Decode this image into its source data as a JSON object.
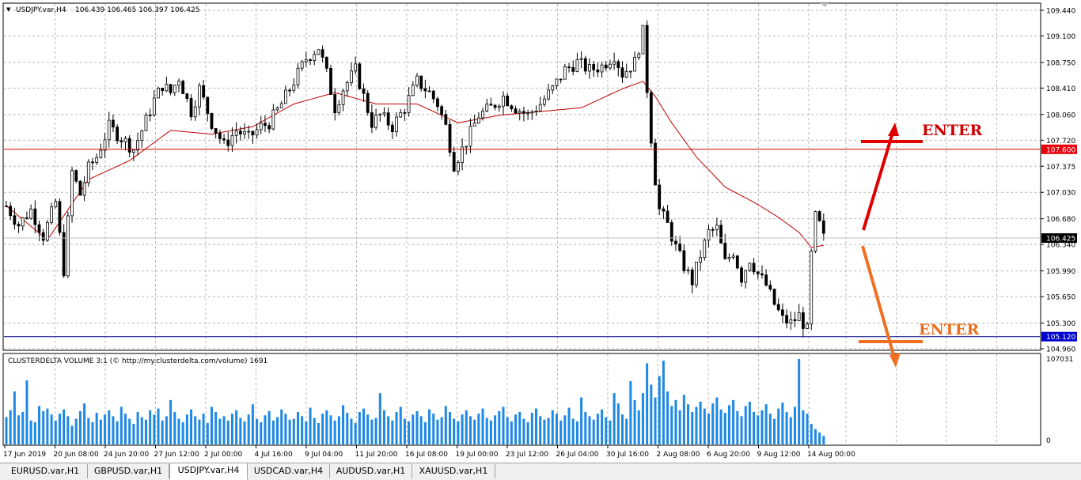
{
  "header": {
    "symbol_label": "USDJPY.var,H4",
    "ohlc": "106.439 106.465 106.397 106.425"
  },
  "indicator": {
    "label": "CLUSTERDELTA VOLUME 3:1 (© http://my.clusterdelta.com/volume) 1691",
    "max_label": "107031",
    "zero_label": "0"
  },
  "price_axis": {
    "ticks": [
      "109.440",
      "109.100",
      "108.750",
      "108.410",
      "108.060",
      "107.720",
      "107.375",
      "107.030",
      "106.680",
      "106.340",
      "105.990",
      "105.650",
      "105.300",
      "104.960"
    ],
    "level_upper": "107.600",
    "level_lower": "105.120",
    "current_price": "106.425"
  },
  "time_axis": {
    "labels": [
      "17 Jun 2019",
      "20 Jun 08:00",
      "24 Jun 20:00",
      "27 Jun 12:00",
      "2 Jul 00:00",
      "4 Jul 16:00",
      "9 Jul 04:00",
      "11 Jul 20:00",
      "16 Jul 08:00",
      "19 Jul 00:00",
      "23 Jul 12:00",
      "26 Jul 04:00",
      "30 Jul 16:00",
      "2 Aug 08:00",
      "6 Aug 20:00",
      "9 Aug 12:00",
      "14 Aug 00:00"
    ]
  },
  "annotations": {
    "enter_upper": "ENTER",
    "enter_lower": "ENTER"
  },
  "tabs": [
    {
      "label": "EURUSD.var,H1",
      "active": false
    },
    {
      "label": "GBPUSD.var,H1",
      "active": false
    },
    {
      "label": "USDJPY.var,H4",
      "active": true
    },
    {
      "label": "USDCAD.var,H4",
      "active": false
    },
    {
      "label": "AUDUSD.var,H1",
      "active": false
    },
    {
      "label": "XAUUSD.var,H1",
      "active": false
    }
  ],
  "colors": {
    "moving_average": "#c00000",
    "level_upper_line": "#d00000",
    "level_lower_line": "#000080",
    "level_upper_badge": "#e8000b",
    "level_lower_badge": "#0000cc",
    "current_badge": "#000000",
    "volume_bars": "#1e88e5",
    "arrow_up": "#e00000",
    "arrow_down": "#f07020",
    "enter_upper_text": "#cc0000",
    "enter_lower_text": "#e87020"
  },
  "chart_data": {
    "type": "candlestick",
    "symbol": "USDJPY.var",
    "timeframe": "H4",
    "ylim": [
      104.96,
      109.44
    ],
    "horizontal_levels": [
      107.6,
      105.12
    ],
    "price_path": [
      [
        0,
        106.85
      ],
      [
        3,
        106.6
      ],
      [
        6,
        106.8
      ],
      [
        9,
        106.45
      ],
      [
        12,
        106.9
      ],
      [
        14,
        106.0
      ],
      [
        16,
        107.3
      ],
      [
        18,
        107.0
      ],
      [
        20,
        107.35
      ],
      [
        22,
        107.5
      ],
      [
        25,
        107.9
      ],
      [
        28,
        107.75
      ],
      [
        31,
        107.6
      ],
      [
        33,
        107.85
      ],
      [
        36,
        108.25
      ],
      [
        38,
        108.45
      ],
      [
        40,
        108.35
      ],
      [
        42,
        108.55
      ],
      [
        45,
        108.1
      ],
      [
        47,
        108.4
      ],
      [
        50,
        107.95
      ],
      [
        53,
        107.65
      ],
      [
        56,
        107.85
      ],
      [
        59,
        107.75
      ],
      [
        62,
        107.9
      ],
      [
        64,
        107.95
      ],
      [
        67,
        108.2
      ],
      [
        70,
        108.5
      ],
      [
        73,
        108.8
      ],
      [
        76,
        108.95
      ],
      [
        78,
        108.6
      ],
      [
        80,
        108.15
      ],
      [
        82,
        108.4
      ],
      [
        85,
        108.65
      ],
      [
        87,
        108.3
      ],
      [
        89,
        107.95
      ],
      [
        91,
        108.05
      ],
      [
        94,
        107.9
      ],
      [
        97,
        108.15
      ],
      [
        100,
        108.5
      ],
      [
        103,
        108.35
      ],
      [
        105,
        108.2
      ],
      [
        107,
        107.9
      ],
      [
        109,
        107.4
      ],
      [
        112,
        107.7
      ],
      [
        115,
        108.05
      ],
      [
        118,
        108.15
      ],
      [
        121,
        108.3
      ],
      [
        124,
        108.15
      ],
      [
        127,
        108.05
      ],
      [
        130,
        108.2
      ],
      [
        133,
        108.4
      ],
      [
        136,
        108.65
      ],
      [
        139,
        108.75
      ],
      [
        142,
        108.65
      ],
      [
        145,
        108.7
      ],
      [
        148,
        108.85
      ],
      [
        150,
        108.6
      ],
      [
        153,
        108.75
      ],
      [
        155,
        109.15
      ],
      [
        156,
        108.4
      ],
      [
        157,
        107.75
      ],
      [
        158,
        107.2
      ],
      [
        159,
        106.8
      ],
      [
        161,
        106.6
      ],
      [
        163,
        106.3
      ],
      [
        165,
        106.05
      ],
      [
        167,
        105.85
      ],
      [
        169,
        106.2
      ],
      [
        171,
        106.5
      ],
      [
        173,
        106.55
      ],
      [
        175,
        106.1
      ],
      [
        177,
        106.25
      ],
      [
        179,
        105.9
      ],
      [
        181,
        106.15
      ],
      [
        183,
        105.95
      ],
      [
        185,
        105.8
      ],
      [
        187,
        105.55
      ],
      [
        189,
        105.35
      ],
      [
        191,
        105.3
      ],
      [
        193,
        105.4
      ],
      [
        195,
        105.2
      ],
      [
        196,
        106.2
      ],
      [
        197,
        106.7
      ],
      [
        198,
        106.6
      ],
      [
        199,
        106.425
      ]
    ],
    "moving_average_path": [
      [
        0,
        106.85
      ],
      [
        10,
        106.4
      ],
      [
        20,
        107.2
      ],
      [
        30,
        107.45
      ],
      [
        40,
        107.85
      ],
      [
        50,
        107.8
      ],
      [
        60,
        107.9
      ],
      [
        70,
        108.2
      ],
      [
        80,
        108.35
      ],
      [
        90,
        108.2
      ],
      [
        100,
        108.2
      ],
      [
        110,
        107.95
      ],
      [
        120,
        108.05
      ],
      [
        130,
        108.1
      ],
      [
        140,
        108.15
      ],
      [
        150,
        108.4
      ],
      [
        155,
        108.5
      ],
      [
        158,
        108.3
      ],
      [
        162,
        107.95
      ],
      [
        168,
        107.5
      ],
      [
        175,
        107.1
      ],
      [
        182,
        106.9
      ],
      [
        188,
        106.7
      ],
      [
        193,
        106.5
      ],
      [
        196,
        106.3
      ],
      [
        199,
        106.33
      ]
    ],
    "volume": [
      32,
      40,
      62,
      34,
      38,
      75,
      28,
      26,
      45,
      39,
      42,
      35,
      28,
      36,
      41,
      33,
      22,
      30,
      39,
      48,
      31,
      26,
      37,
      29,
      35,
      40,
      33,
      27,
      44,
      36,
      30,
      24,
      38,
      32,
      29,
      40,
      35,
      42,
      28,
      33,
      52,
      38,
      30,
      26,
      35,
      41,
      33,
      29,
      36,
      25,
      44,
      38,
      30,
      33,
      28,
      36,
      40,
      31,
      27,
      35,
      47,
      30,
      26,
      34,
      39,
      28,
      32,
      41,
      36,
      29,
      30,
      38,
      33,
      27,
      43,
      31,
      25,
      36,
      40,
      34,
      28,
      33,
      46,
      37,
      30,
      25,
      38,
      42,
      35,
      29,
      31,
      60,
      40,
      33,
      28,
      38,
      44,
      30,
      27,
      35,
      39,
      33,
      26,
      41,
      36,
      29,
      32,
      45,
      38,
      30,
      27,
      35,
      40,
      33,
      29,
      36,
      42,
      31,
      28,
      34,
      39,
      44,
      32,
      27,
      35,
      38,
      30,
      26,
      37,
      42,
      33,
      29,
      31,
      40,
      36,
      28,
      34,
      43,
      30,
      27,
      55,
      38,
      33,
      29,
      36,
      41,
      32,
      28,
      60,
      48,
      35,
      30,
      74,
      52,
      40,
      60,
      95,
      70,
      55,
      80,
      98,
      62,
      45,
      52,
      40,
      58,
      47,
      38,
      44,
      50,
      42,
      36,
      48,
      55,
      41,
      37,
      46,
      52,
      39,
      33,
      45,
      50,
      38,
      34,
      40,
      47,
      36,
      30,
      42,
      49,
      38,
      32,
      44,
      100,
      40,
      36,
      24,
      18,
      14,
      10
    ]
  }
}
